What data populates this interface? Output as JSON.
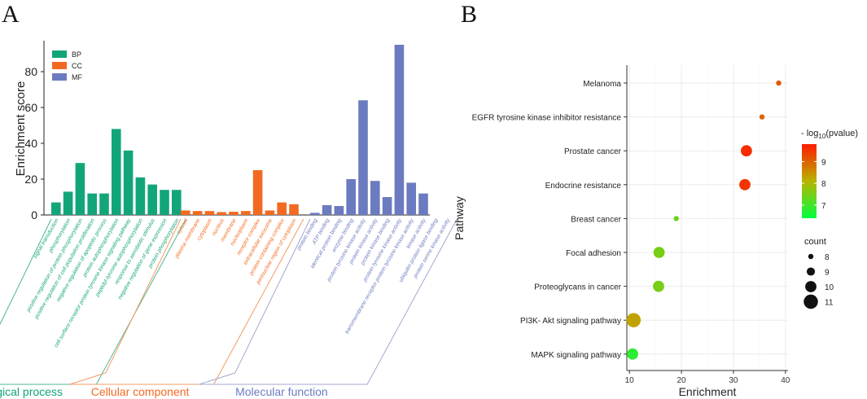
{
  "panel_labels": [
    "A",
    "B"
  ],
  "colors": {
    "BP": "#13a57a",
    "CC": "#f26a21",
    "MF": "#6b7bc0",
    "BP_text": "#13a57a",
    "CC_text": "#f26a21",
    "MF_text": "#6b7bc0",
    "BP_frame": "#4cb795",
    "CC_frame": "#f49a66",
    "MF_frame": "#a7a6cf",
    "grad_high": "#ff1a00",
    "grad_mid": "#b8b400",
    "grad_low": "#00ff40",
    "plot_bg": "#ffffff",
    "grid": "#ebebeb"
  },
  "chart_data": [
    {
      "type": "bar",
      "panel": "A",
      "ylabel": "Enrichment score",
      "ylim": [
        0,
        95
      ],
      "yticks": [
        0,
        20,
        40,
        60,
        80
      ],
      "legend": [
        {
          "key": "BP",
          "label": "BP"
        },
        {
          "key": "CC",
          "label": "CC"
        },
        {
          "key": "MF",
          "label": "MF"
        }
      ],
      "groups": [
        {
          "key": "BP",
          "title": "Biological process",
          "categories": [
            "signal transduction",
            "phosphorylation",
            "positive regulation of protein phosphorylation",
            "positive regulation of cell population proliferation",
            "negative regulation of apoptotic process",
            "protein autophosphorylation",
            "cell surface receptor protein tyrosine kinase signaling pathway",
            "peptidyl-tyrosine autophosphorylation",
            "response to xenobiotic stimulus",
            "negative regulation of gene expression",
            "protein phosphorylation"
          ],
          "values": [
            7,
            13,
            29,
            12,
            12,
            48,
            36,
            21,
            17,
            14,
            14
          ]
        },
        {
          "key": "CC",
          "title": "Cellular component",
          "categories": [
            "cytosol",
            "plasma membrane",
            "cytoplasm",
            "nucleus",
            "membrane",
            "nucleoplasm",
            "receptor complex",
            "extracellular exosome",
            "protein-containing complex",
            "perinuclear region of cytoplasm"
          ],
          "values": [
            2.5,
            2.2,
            2.2,
            1.6,
            1.8,
            2.2,
            25,
            2.5,
            7,
            6
          ]
        },
        {
          "key": "MF",
          "title": "Molecular function",
          "categories": [
            "protein binding",
            "ATP binding",
            "identical protein binding",
            "enzyme binding",
            "protein tyrosine kinase activity",
            "protein kinase activity",
            "protein kinase binding",
            "protein tyrosine kinase activity",
            "transmembrane receptor protein tyrosine kinase activity",
            "kinase activity",
            "ubiquitin protein ligase binding",
            "protein serine kinase activity"
          ],
          "values": [
            1.2,
            5.5,
            5,
            20,
            64,
            19,
            10,
            95,
            18,
            12,
            0,
            0
          ]
        }
      ]
    },
    {
      "type": "scatter",
      "panel": "B",
      "xlabel": "Enrichment",
      "ylabel": "Pathway",
      "xlim": [
        9.5,
        40.5
      ],
      "xticks": [
        10,
        20,
        30,
        40
      ],
      "points": [
        {
          "pathway": "Melanoma",
          "enrichment": 38.7,
          "count": 8,
          "log_p": 9.1
        },
        {
          "pathway": "EGFR tyrosine kinase inhibitor resistance",
          "enrichment": 35.5,
          "count": 8,
          "log_p": 9.0
        },
        {
          "pathway": "Prostate cancer",
          "enrichment": 32.5,
          "count": 10,
          "log_p": 9.6
        },
        {
          "pathway": "Endocrine resistance",
          "enrichment": 32.2,
          "count": 10,
          "log_p": 9.5
        },
        {
          "pathway": "Breast cancer",
          "enrichment": 19.0,
          "count": 8,
          "log_p": 7.4
        },
        {
          "pathway": "Focal adhesion",
          "enrichment": 15.7,
          "count": 10,
          "log_p": 7.5
        },
        {
          "pathway": "Proteoglycans in cancer",
          "enrichment": 15.6,
          "count": 10,
          "log_p": 7.5
        },
        {
          "pathway": "PI3K- Akt signaling pathway",
          "enrichment": 10.8,
          "count": 11,
          "log_p": 8.3
        },
        {
          "pathway": "MAPK signaling pathway",
          "enrichment": 10.6,
          "count": 10,
          "log_p": 6.8
        }
      ],
      "color_legend": {
        "title_prefix": "- log",
        "title_sub": "10",
        "title_suffix": "(pvalue)",
        "range": [
          6.4,
          9.8
        ],
        "ticks": [
          7,
          8,
          9
        ]
      },
      "size_legend": {
        "title": "count",
        "values": [
          8,
          9,
          10,
          11
        ]
      }
    }
  ]
}
